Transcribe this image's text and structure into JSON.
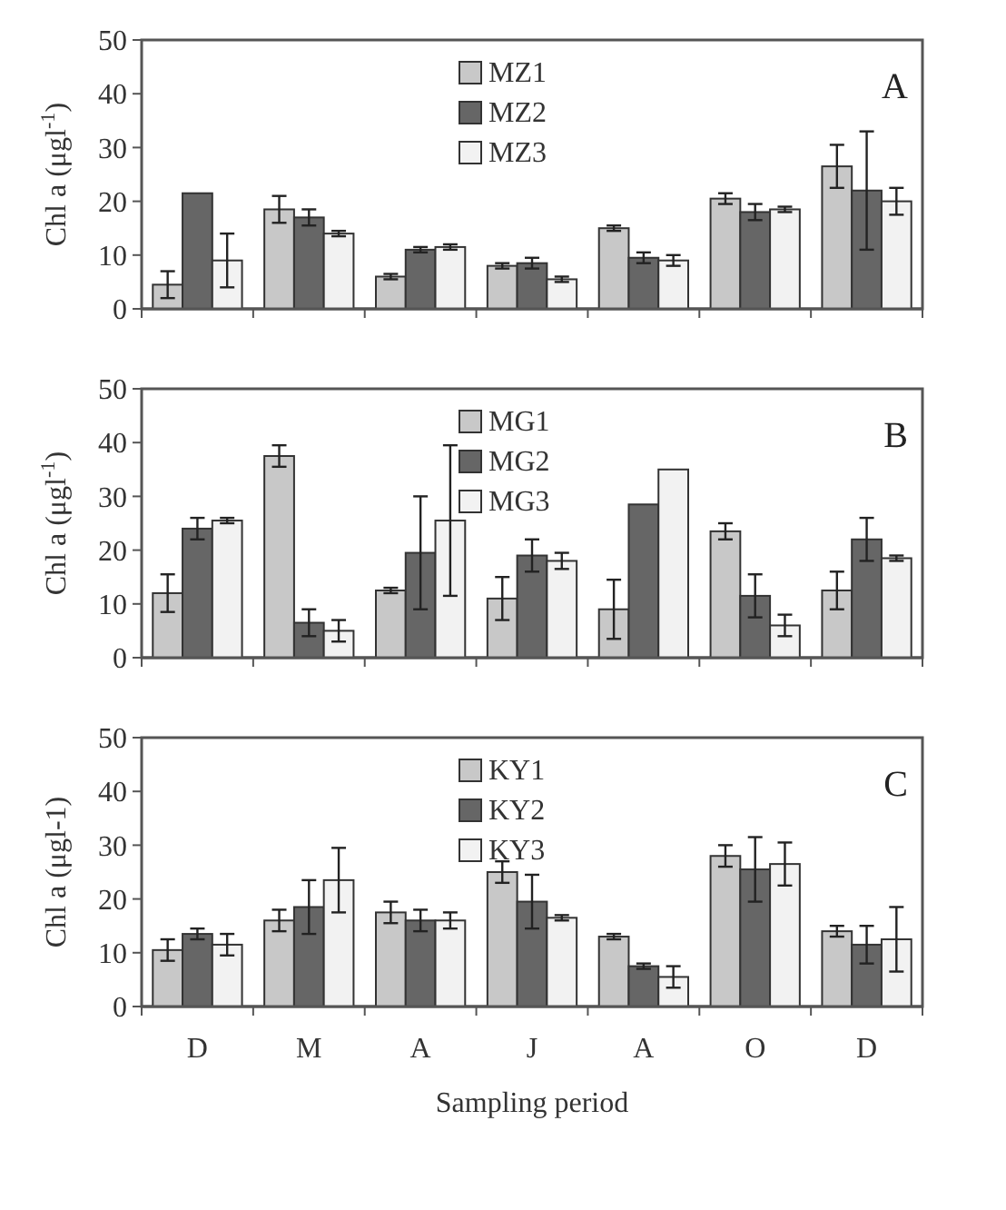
{
  "chart_data": [
    {
      "type": "bar",
      "ylabel": "Chl a (μgl$^{-1}$)",
      "categories": [
        null,
        null,
        null,
        null,
        null,
        null,
        null
      ],
      "ylim": [
        0,
        50
      ],
      "yticks": [
        0,
        10,
        20,
        30,
        40,
        50
      ],
      "legend": "top",
      "annotations": [
        "A"
      ],
      "series": [
        {
          "name": "MZ1",
          "color": "#c8c8c8",
          "values": [
            4.5,
            18.5,
            6,
            8,
            15,
            20.5,
            26.5
          ],
          "errors": [
            2.5,
            2.5,
            0.5,
            0.5,
            0.5,
            1,
            4
          ]
        },
        {
          "name": "MZ2",
          "color": "#666666",
          "values": [
            21.5,
            17,
            11,
            8.5,
            9.5,
            18,
            22
          ],
          "errors": [
            null,
            1.5,
            0.5,
            1,
            1,
            1.5,
            11
          ]
        },
        {
          "name": "MZ3",
          "color": "#f2f2f2",
          "values": [
            9,
            14,
            11.5,
            5.5,
            9,
            18.5,
            20
          ],
          "errors": [
            5,
            0.5,
            0.5,
            0.5,
            1,
            0.5,
            2.5
          ]
        }
      ]
    },
    {
      "type": "bar",
      "ylabel": "Chl a (μgl$^{-1}$)",
      "categories": [
        null,
        null,
        null,
        null,
        null,
        null,
        null
      ],
      "ylim": [
        0,
        50
      ],
      "yticks": [
        0,
        10,
        20,
        30,
        40,
        50
      ],
      "legend": "top",
      "annotations": [
        "B"
      ],
      "series": [
        {
          "name": "MG1",
          "color": "#c8c8c8",
          "values": [
            12,
            37.5,
            12.5,
            11,
            9,
            23.5,
            12.5
          ],
          "errors": [
            3.5,
            2,
            0.5,
            4,
            5.5,
            1.5,
            3.5
          ]
        },
        {
          "name": "MG2",
          "color": "#666666",
          "values": [
            24,
            6.5,
            19.5,
            19,
            28.5,
            11.5,
            22
          ],
          "errors": [
            2,
            2.5,
            10.5,
            3,
            null,
            4,
            4
          ]
        },
        {
          "name": "MG3",
          "color": "#f2f2f2",
          "values": [
            25.5,
            5,
            25.5,
            18,
            35,
            6,
            18.5
          ],
          "errors": [
            0.5,
            2,
            14,
            1.5,
            null,
            2,
            0.5
          ]
        }
      ]
    },
    {
      "type": "bar",
      "xlabel": "Sampling period",
      "ylabel": "Chl a (μgl-1)",
      "categories": [
        "D",
        "M",
        "A",
        "J",
        "A",
        "O",
        "D"
      ],
      "ylim": [
        0,
        50
      ],
      "yticks": [
        0,
        10,
        20,
        30,
        40,
        50
      ],
      "legend": "top",
      "annotations": [
        "C"
      ],
      "series": [
        {
          "name": "KY1",
          "color": "#c8c8c8",
          "values": [
            10.5,
            16,
            17.5,
            25,
            13,
            28,
            14
          ],
          "errors": [
            2,
            2,
            2,
            2,
            0.5,
            2,
            1
          ]
        },
        {
          "name": "KY2",
          "color": "#666666",
          "values": [
            13.5,
            18.5,
            16,
            19.5,
            7.5,
            25.5,
            11.5
          ],
          "errors": [
            1,
            5,
            2,
            5,
            0.5,
            6,
            3.5
          ]
        },
        {
          "name": "KY3",
          "color": "#f2f2f2",
          "values": [
            11.5,
            23.5,
            16,
            16.5,
            5.5,
            26.5,
            12.5
          ],
          "errors": [
            2,
            6,
            1.5,
            0.5,
            2,
            4,
            6
          ]
        }
      ]
    }
  ]
}
